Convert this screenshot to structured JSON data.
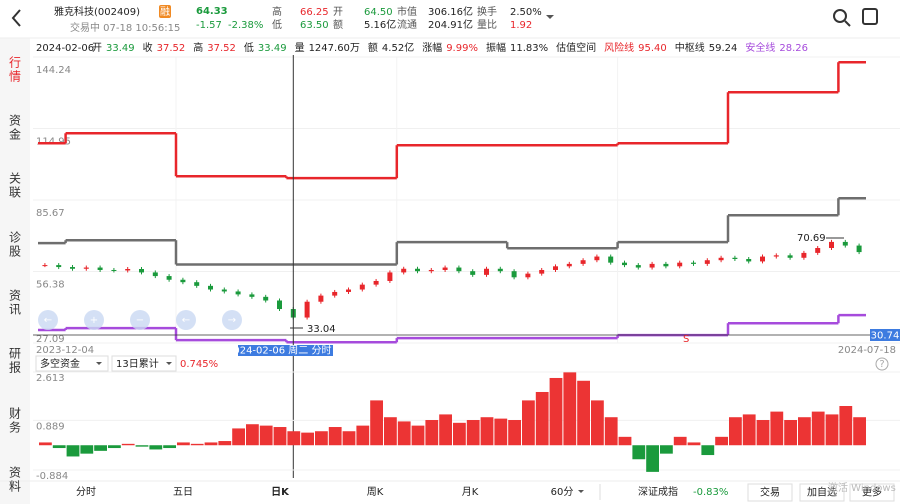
{
  "header": {
    "title": "雅克科技(002409)",
    "badge": "融",
    "price": "64.33",
    "change": "-1.57",
    "change_pct": "-2.38%",
    "status": "交易中 07-18 10:56:15",
    "stats": [
      {
        "label": "高",
        "value": "66.25",
        "color": "#e8262b"
      },
      {
        "label": "低",
        "value": "63.50",
        "color": "#1a9a3c"
      },
      {
        "label": "开",
        "value": "64.50",
        "color": "#1a9a3c"
      },
      {
        "label": "额",
        "value": "5.16亿",
        "color": "#222"
      },
      {
        "label": "市值",
        "value": "306.16亿",
        "color": "#222"
      },
      {
        "label": "流通",
        "value": "204.91亿",
        "color": "#222"
      },
      {
        "label": "换手",
        "value": "2.50%",
        "color": "#222"
      },
      {
        "label": "量比",
        "value": "1.92",
        "color": "#e8262b"
      }
    ]
  },
  "side_tabs": [
    "行情",
    "资金",
    "关联",
    "诊股",
    "资讯",
    "研报",
    "财务",
    "资料"
  ],
  "info_bar": {
    "date": "2024-02-06",
    "items": [
      {
        "label": "开",
        "value": "33.49",
        "color": "#1a9a3c"
      },
      {
        "label": "收",
        "value": "37.52",
        "color": "#e8262b"
      },
      {
        "label": "高",
        "value": "37.52",
        "color": "#e8262b"
      },
      {
        "label": "低",
        "value": "33.49",
        "color": "#1a9a3c"
      },
      {
        "label": "量",
        "value": "1247.60万",
        "color": "#222"
      },
      {
        "label": "额",
        "value": "4.52亿",
        "color": "#222"
      },
      {
        "label": "涨幅",
        "value": "9.99%",
        "color": "#e8262b"
      },
      {
        "label": "振幅",
        "value": "11.83%",
        "color": "#222"
      },
      {
        "label": "估值空间",
        "value": "",
        "color": "#222"
      },
      {
        "label": "风险线",
        "value": "95.40",
        "color": "#e8262b"
      },
      {
        "label": "中枢线",
        "value": "59.24",
        "color": "#222"
      },
      {
        "label": "安全线",
        "value": "28.26",
        "color": "#a64bdc"
      }
    ]
  },
  "price_chart": {
    "ylim": [
      27.09,
      144.24
    ],
    "yticks": [
      144.24,
      114.95,
      85.67,
      56.38,
      27.09
    ],
    "start_date": "2023-12-04",
    "end_date": "2024-07-18",
    "closes": [
      59.0,
      58.2,
      57.5,
      58.0,
      57.0,
      56.8,
      57.4,
      56.0,
      54.5,
      53.0,
      52.0,
      50.5,
      49.0,
      48.2,
      47.0,
      46.0,
      44.5,
      41.0,
      37.52,
      44.0,
      46.5,
      48.0,
      49.0,
      51.0,
      52.5,
      56.0,
      57.5,
      56.5,
      57.0,
      58.0,
      56.5,
      55.0,
      57.5,
      56.5,
      54.0,
      55.5,
      57.0,
      58.5,
      59.5,
      61.0,
      62.5,
      60.0,
      59.0,
      58.0,
      59.5,
      58.5,
      60.0,
      59.5,
      61.0,
      62.0,
      61.5,
      60.5,
      62.5,
      63.0,
      62.0,
      64.0,
      66.0,
      68.5,
      67.0,
      64.33
    ],
    "lines": [
      {
        "color": "#e8262b",
        "steps": [
          [
            0,
            108.9
          ],
          [
            2,
            113.0
          ],
          [
            10,
            95.4
          ],
          [
            18,
            94.6
          ],
          [
            26,
            108.1
          ],
          [
            42,
            108.9
          ],
          [
            50,
            129.8
          ],
          [
            58,
            142.1
          ]
        ]
      },
      {
        "color": "#6e6e6e",
        "steps": [
          [
            0,
            68.0
          ],
          [
            2,
            69.2
          ],
          [
            10,
            59.24
          ],
          [
            26,
            68.4
          ],
          [
            34,
            65.9
          ],
          [
            42,
            68.4
          ],
          [
            50,
            79.4
          ],
          [
            58,
            86.4
          ]
        ]
      },
      {
        "color": "#a64bdc",
        "steps": [
          [
            0,
            32.4
          ],
          [
            2,
            33.2
          ],
          [
            10,
            28.26
          ],
          [
            18,
            27.4
          ],
          [
            26,
            29.1
          ],
          [
            42,
            30.3
          ],
          [
            50,
            35.2
          ],
          [
            58,
            38.5
          ]
        ]
      }
    ],
    "low_label": "33.04",
    "high_label": "70.69",
    "crosshair_date": "2024-02-06 周二 分时 >",
    "crosshair_price": "30.74",
    "signal": "S"
  },
  "flow_chart": {
    "indicator": "多空资金",
    "period": "13日累计",
    "change": "0.745%",
    "ylim": [
      -1.24,
      2.613
    ],
    "yticks": [
      2.613,
      0.889,
      -0.884
    ],
    "values": [
      0.1,
      -0.1,
      -0.4,
      -0.3,
      -0.2,
      -0.1,
      0.05,
      -0.05,
      -0.15,
      -0.1,
      0.1,
      0.05,
      0.1,
      0.15,
      0.6,
      0.75,
      0.7,
      0.65,
      0.5,
      0.45,
      0.5,
      0.65,
      0.5,
      0.7,
      1.6,
      1.0,
      0.85,
      0.7,
      0.9,
      1.1,
      0.8,
      0.9,
      1.0,
      0.95,
      0.9,
      1.6,
      1.9,
      2.4,
      2.6,
      2.3,
      1.6,
      1.0,
      0.3,
      -0.5,
      -0.95,
      -0.3,
      0.3,
      0.1,
      -0.35,
      0.3,
      1.0,
      1.1,
      0.9,
      1.2,
      0.9,
      1.0,
      1.2,
      1.1,
      1.4,
      1.0
    ]
  },
  "bottom_tabs": [
    "分时",
    "五日",
    "日K",
    "周K",
    "月K",
    "60分"
  ],
  "index_name": "深证成指",
  "index_change": "-0.83%",
  "actions": [
    "交易",
    "加自选",
    "更多"
  ],
  "watermark": "激活 Windows"
}
